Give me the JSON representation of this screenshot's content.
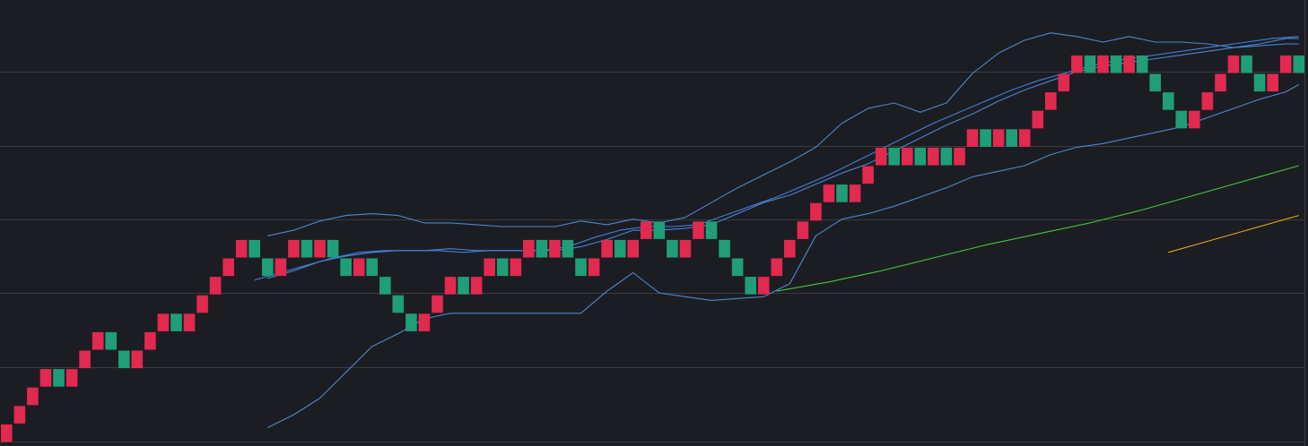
{
  "chart_data": {
    "type": "renko",
    "title": "",
    "xlabel": "",
    "ylabel": "",
    "ylim": [
      0,
      23.9
    ],
    "grid": true,
    "colors": {
      "background": "#1c1d22",
      "grid": "#3a3b40",
      "up_brick": "#e2294f",
      "down_brick": "#1f9e77",
      "bollinger": "#4a86d4",
      "fast_ma": "#3d7fe0",
      "ma_green": "#3ec93e",
      "ma_orange": "#e6a521"
    },
    "bricks": [
      {
        "index": 0,
        "low": 0,
        "dir": "up"
      },
      {
        "index": 1,
        "low": 1,
        "dir": "up"
      },
      {
        "index": 2,
        "low": 2,
        "dir": "up"
      },
      {
        "index": 3,
        "low": 3,
        "dir": "up"
      },
      {
        "index": 4,
        "low": 3,
        "dir": "down"
      },
      {
        "index": 5,
        "low": 3,
        "dir": "up"
      },
      {
        "index": 6,
        "low": 4,
        "dir": "up"
      },
      {
        "index": 7,
        "low": 5,
        "dir": "up"
      },
      {
        "index": 8,
        "low": 5,
        "dir": "down"
      },
      {
        "index": 9,
        "low": 4,
        "dir": "down"
      },
      {
        "index": 10,
        "low": 4,
        "dir": "up"
      },
      {
        "index": 11,
        "low": 5,
        "dir": "up"
      },
      {
        "index": 12,
        "low": 6,
        "dir": "up"
      },
      {
        "index": 13,
        "low": 6,
        "dir": "down"
      },
      {
        "index": 14,
        "low": 6,
        "dir": "up"
      },
      {
        "index": 15,
        "low": 7,
        "dir": "up"
      },
      {
        "index": 16,
        "low": 8,
        "dir": "up"
      },
      {
        "index": 17,
        "low": 9,
        "dir": "up"
      },
      {
        "index": 18,
        "low": 10,
        "dir": "up"
      },
      {
        "index": 19,
        "low": 10,
        "dir": "down"
      },
      {
        "index": 20,
        "low": 9,
        "dir": "down"
      },
      {
        "index": 21,
        "low": 9,
        "dir": "up"
      },
      {
        "index": 22,
        "low": 10,
        "dir": "up"
      },
      {
        "index": 23,
        "low": 10,
        "dir": "down"
      },
      {
        "index": 24,
        "low": 10,
        "dir": "up"
      },
      {
        "index": 25,
        "low": 10,
        "dir": "down"
      },
      {
        "index": 26,
        "low": 9,
        "dir": "down"
      },
      {
        "index": 27,
        "low": 9,
        "dir": "up"
      },
      {
        "index": 28,
        "low": 9,
        "dir": "down"
      },
      {
        "index": 29,
        "low": 8,
        "dir": "down"
      },
      {
        "index": 30,
        "low": 7,
        "dir": "down"
      },
      {
        "index": 31,
        "low": 6,
        "dir": "down"
      },
      {
        "index": 32,
        "low": 6,
        "dir": "up"
      },
      {
        "index": 33,
        "low": 7,
        "dir": "up"
      },
      {
        "index": 34,
        "low": 8,
        "dir": "up"
      },
      {
        "index": 35,
        "low": 8,
        "dir": "down"
      },
      {
        "index": 36,
        "low": 8,
        "dir": "up"
      },
      {
        "index": 37,
        "low": 9,
        "dir": "up"
      },
      {
        "index": 38,
        "low": 9,
        "dir": "down"
      },
      {
        "index": 39,
        "low": 9,
        "dir": "up"
      },
      {
        "index": 40,
        "low": 10,
        "dir": "up"
      },
      {
        "index": 41,
        "low": 10,
        "dir": "down"
      },
      {
        "index": 42,
        "low": 10,
        "dir": "up"
      },
      {
        "index": 43,
        "low": 10,
        "dir": "down"
      },
      {
        "index": 44,
        "low": 9,
        "dir": "down"
      },
      {
        "index": 45,
        "low": 9,
        "dir": "up"
      },
      {
        "index": 46,
        "low": 10,
        "dir": "up"
      },
      {
        "index": 47,
        "low": 10,
        "dir": "down"
      },
      {
        "index": 48,
        "low": 10,
        "dir": "up"
      },
      {
        "index": 49,
        "low": 11,
        "dir": "up"
      },
      {
        "index": 50,
        "low": 11,
        "dir": "down"
      },
      {
        "index": 51,
        "low": 10,
        "dir": "down"
      },
      {
        "index": 52,
        "low": 10,
        "dir": "up"
      },
      {
        "index": 53,
        "low": 11,
        "dir": "up"
      },
      {
        "index": 54,
        "low": 11,
        "dir": "down"
      },
      {
        "index": 55,
        "low": 10,
        "dir": "down"
      },
      {
        "index": 56,
        "low": 9,
        "dir": "down"
      },
      {
        "index": 57,
        "low": 8,
        "dir": "down"
      },
      {
        "index": 58,
        "low": 8,
        "dir": "up"
      },
      {
        "index": 59,
        "low": 9,
        "dir": "up"
      },
      {
        "index": 60,
        "low": 10,
        "dir": "up"
      },
      {
        "index": 61,
        "low": 11,
        "dir": "up"
      },
      {
        "index": 62,
        "low": 12,
        "dir": "up"
      },
      {
        "index": 63,
        "low": 13,
        "dir": "up"
      },
      {
        "index": 64,
        "low": 13,
        "dir": "down"
      },
      {
        "index": 65,
        "low": 13,
        "dir": "up"
      },
      {
        "index": 66,
        "low": 14,
        "dir": "up"
      },
      {
        "index": 67,
        "low": 15,
        "dir": "up"
      },
      {
        "index": 68,
        "low": 15,
        "dir": "down"
      },
      {
        "index": 69,
        "low": 15,
        "dir": "up"
      },
      {
        "index": 70,
        "low": 15,
        "dir": "down"
      },
      {
        "index": 71,
        "low": 15,
        "dir": "up"
      },
      {
        "index": 72,
        "low": 15,
        "dir": "down"
      },
      {
        "index": 73,
        "low": 15,
        "dir": "up"
      },
      {
        "index": 74,
        "low": 16,
        "dir": "up"
      },
      {
        "index": 75,
        "low": 16,
        "dir": "down"
      },
      {
        "index": 76,
        "low": 16,
        "dir": "up"
      },
      {
        "index": 77,
        "low": 16,
        "dir": "down"
      },
      {
        "index": 78,
        "low": 16,
        "dir": "up"
      },
      {
        "index": 79,
        "low": 17,
        "dir": "up"
      },
      {
        "index": 80,
        "low": 18,
        "dir": "up"
      },
      {
        "index": 81,
        "low": 19,
        "dir": "up"
      },
      {
        "index": 82,
        "low": 20,
        "dir": "up"
      },
      {
        "index": 83,
        "low": 20,
        "dir": "down"
      },
      {
        "index": 84,
        "low": 20,
        "dir": "up"
      },
      {
        "index": 85,
        "low": 20,
        "dir": "down"
      },
      {
        "index": 86,
        "low": 20,
        "dir": "up"
      },
      {
        "index": 87,
        "low": 20,
        "dir": "down"
      },
      {
        "index": 88,
        "low": 19,
        "dir": "down"
      },
      {
        "index": 89,
        "low": 18,
        "dir": "down"
      },
      {
        "index": 90,
        "low": 17,
        "dir": "down"
      },
      {
        "index": 91,
        "low": 17,
        "dir": "up"
      },
      {
        "index": 92,
        "low": 18,
        "dir": "up"
      },
      {
        "index": 93,
        "low": 19,
        "dir": "up"
      },
      {
        "index": 94,
        "low": 20,
        "dir": "up"
      },
      {
        "index": 95,
        "low": 20,
        "dir": "down"
      },
      {
        "index": 96,
        "low": 19,
        "dir": "down"
      },
      {
        "index": 97,
        "low": 19,
        "dir": "up"
      },
      {
        "index": 98,
        "low": 20,
        "dir": "up"
      },
      {
        "index": 99,
        "low": 20,
        "dir": "down"
      }
    ],
    "series": [
      {
        "key": "bb_upper",
        "color": "bollinger",
        "x": [
          20,
          22,
          24,
          26,
          28,
          30,
          32,
          34,
          36,
          38,
          40,
          42,
          44,
          46,
          48,
          50,
          52,
          54,
          56,
          58,
          60,
          62,
          64,
          66,
          68,
          70,
          72,
          74,
          76,
          78,
          80,
          82,
          84,
          86,
          88,
          90,
          92,
          94,
          96,
          98,
          99
        ],
        "values": [
          11.2,
          11.5,
          12.0,
          12.3,
          12.4,
          12.3,
          11.9,
          11.9,
          11.8,
          11.7,
          11.7,
          11.7,
          12.0,
          11.8,
          12.1,
          11.9,
          12.2,
          13.0,
          13.8,
          14.5,
          15.2,
          16.0,
          17.3,
          18.1,
          18.4,
          17.9,
          18.4,
          20.0,
          21.1,
          21.8,
          22.2,
          22.0,
          21.7,
          22.0,
          21.7,
          21.7,
          21.6,
          21.4,
          21.5,
          21.6,
          21.6
        ]
      },
      {
        "key": "bb_middle",
        "color": "bollinger",
        "x": [
          20,
          22,
          24,
          26,
          28,
          30,
          32,
          34,
          36,
          38,
          40,
          42,
          44,
          46,
          48,
          50,
          52,
          54,
          56,
          58,
          60,
          62,
          64,
          66,
          68,
          70,
          72,
          74,
          76,
          78,
          80,
          82,
          84,
          86,
          88,
          90,
          92,
          94,
          96,
          98,
          99
        ],
        "values": [
          8.9,
          9.3,
          9.8,
          10.1,
          10.3,
          10.4,
          10.4,
          10.5,
          10.4,
          10.4,
          10.4,
          10.4,
          10.6,
          11.0,
          11.5,
          11.5,
          11.6,
          11.8,
          12.4,
          13.0,
          13.4,
          14.0,
          14.6,
          15.1,
          15.8,
          16.5,
          17.2,
          17.8,
          18.5,
          19.1,
          19.6,
          20.1,
          20.4,
          20.6,
          20.8,
          21.0,
          21.2,
          21.4,
          21.6,
          21.9,
          21.9
        ]
      },
      {
        "key": "bb_lower",
        "color": "bollinger",
        "x": [
          20,
          22,
          24,
          26,
          28,
          30,
          32,
          34,
          36,
          38,
          40,
          42,
          44,
          46,
          48,
          50,
          52,
          54,
          56,
          58,
          60,
          62,
          64,
          66,
          68,
          70,
          72,
          74,
          76,
          78,
          80,
          82,
          84,
          86,
          88,
          90,
          92,
          94,
          96,
          98,
          99
        ],
        "values": [
          0.8,
          1.5,
          2.4,
          3.8,
          5.2,
          5.9,
          6.7,
          7.0,
          7.0,
          7.0,
          7.0,
          7.0,
          7.0,
          8.2,
          9.2,
          8.1,
          7.9,
          7.7,
          7.8,
          7.9,
          8.6,
          11.2,
          12.1,
          12.4,
          12.8,
          13.3,
          13.8,
          14.4,
          14.7,
          15.0,
          15.6,
          16.0,
          16.2,
          16.5,
          16.8,
          17.1,
          17.6,
          18.1,
          18.6,
          19.0,
          19.4
        ]
      },
      {
        "key": "ma_fast",
        "color": "fast_ma",
        "x": [
          19,
          21,
          23,
          25,
          27,
          29,
          31,
          33,
          35,
          37,
          39,
          41,
          43,
          45,
          47,
          49,
          51,
          53,
          55,
          57,
          59,
          61,
          63,
          65,
          67,
          69,
          71,
          73,
          75,
          77,
          79,
          81,
          83,
          85,
          87,
          89,
          91,
          93,
          95,
          97,
          99
        ],
        "values": [
          8.8,
          9.2,
          9.6,
          10.0,
          10.3,
          10.4,
          10.4,
          10.4,
          10.3,
          10.4,
          10.4,
          10.4,
          10.6,
          11.1,
          11.5,
          11.7,
          11.7,
          11.8,
          12.3,
          12.8,
          13.3,
          13.9,
          14.5,
          15.2,
          15.9,
          16.6,
          17.3,
          17.9,
          18.5,
          19.1,
          19.6,
          20.0,
          20.4,
          20.7,
          20.9,
          21.1,
          21.3,
          21.5,
          21.7,
          21.9,
          22.0
        ]
      },
      {
        "key": "ma_green",
        "color": "ma_green",
        "x": [
          59,
          63,
          67,
          71,
          75,
          79,
          83,
          87,
          91,
          95,
          99
        ],
        "values": [
          8.2,
          8.7,
          9.3,
          10.0,
          10.7,
          11.3,
          11.9,
          12.6,
          13.4,
          14.2,
          15.0
        ]
      },
      {
        "key": "ma_orange",
        "color": "ma_orange",
        "x": [
          89,
          92,
          95,
          99
        ],
        "values": [
          10.3,
          10.9,
          11.5,
          12.3
        ]
      }
    ]
  }
}
